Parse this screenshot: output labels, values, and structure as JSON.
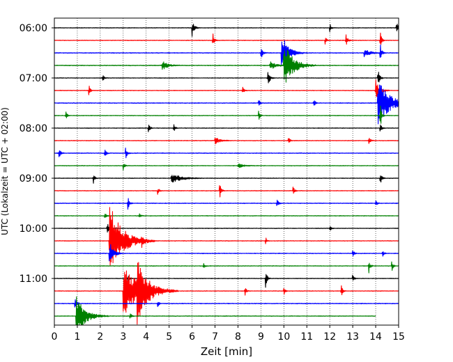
{
  "chart_data": {
    "type": "line",
    "title": "",
    "xlabel": "Zeit  [min]",
    "ylabel": "UTC (Lokalzeit = UTC + 02:00)",
    "xlim": [
      0,
      15
    ],
    "x_ticks": [
      "0",
      "1",
      "2",
      "3",
      "4",
      "5",
      "6",
      "7",
      "8",
      "9",
      "10",
      "11",
      "12",
      "13",
      "14",
      "15"
    ],
    "y_ticks": [
      "06:00",
      "07:00",
      "08:00",
      "09:00",
      "10:00",
      "11:00"
    ],
    "grid": "vertical dotted lines at each minute",
    "trace_interval_minutes": 15,
    "start_time": "06:00",
    "colors": {
      "black": "#000000",
      "red": "#ff0000",
      "blue": "#0000ff",
      "green": "#008000"
    },
    "traces": [
      {
        "start": "06:00",
        "color": "black",
        "noise": 0.5,
        "last_minute": 15,
        "events": [
          {
            "t": 6.0,
            "amp": 12,
            "dur": 0.08
          },
          {
            "t": 14.9,
            "amp": 10,
            "dur": 0.08
          },
          {
            "t": 12.0,
            "amp": 7,
            "dur": 0.05
          }
        ]
      },
      {
        "start": "06:15",
        "color": "red",
        "noise": 0.5,
        "last_minute": 15,
        "events": [
          {
            "t": 6.9,
            "amp": 12,
            "dur": 0.05
          },
          {
            "t": 12.7,
            "amp": 10,
            "dur": 0.06
          },
          {
            "t": 11.8,
            "amp": 7,
            "dur": 0.05
          },
          {
            "t": 14.2,
            "amp": 14,
            "dur": 0.05
          }
        ]
      },
      {
        "start": "06:30",
        "color": "blue",
        "noise": 0.6,
        "last_minute": 15,
        "events": [
          {
            "t": 9.9,
            "amp": 30,
            "dur": 0.25
          },
          {
            "t": 14.2,
            "amp": 14,
            "dur": 0.06
          },
          {
            "t": 9.0,
            "amp": 9,
            "dur": 0.08
          },
          {
            "t": 13.5,
            "amp": 7,
            "dur": 0.2
          }
        ]
      },
      {
        "start": "06:45",
        "color": "green",
        "noise": 0.6,
        "last_minute": 15,
        "events": [
          {
            "t": 10.0,
            "amp": 35,
            "dur": 0.35
          },
          {
            "t": 4.7,
            "amp": 8,
            "dur": 0.2
          },
          {
            "t": 9.4,
            "amp": 7,
            "dur": 0.2
          }
        ]
      },
      {
        "start": "07:00",
        "color": "black",
        "noise": 0.5,
        "last_minute": 15,
        "events": [
          {
            "t": 9.3,
            "amp": 12,
            "dur": 0.08
          },
          {
            "t": 14.1,
            "amp": 16,
            "dur": 0.06
          },
          {
            "t": 2.1,
            "amp": 6,
            "dur": 0.05
          }
        ]
      },
      {
        "start": "07:15",
        "color": "red",
        "noise": 0.5,
        "last_minute": 15,
        "events": [
          {
            "t": 1.5,
            "amp": 10,
            "dur": 0.05
          },
          {
            "t": 14.0,
            "amp": 16,
            "dur": 0.15
          },
          {
            "t": 8.2,
            "amp": 6,
            "dur": 0.05
          }
        ]
      },
      {
        "start": "07:30",
        "color": "blue",
        "noise": 0.6,
        "last_minute": 15,
        "events": [
          {
            "t": 14.1,
            "amp": 35,
            "dur": 0.45
          },
          {
            "t": 11.3,
            "amp": 8,
            "dur": 0.05
          },
          {
            "t": 8.9,
            "amp": 7,
            "dur": 0.05
          }
        ]
      },
      {
        "start": "07:45",
        "color": "green",
        "noise": 0.5,
        "last_minute": 15,
        "events": [
          {
            "t": 0.5,
            "amp": 8,
            "dur": 0.05
          },
          {
            "t": 8.9,
            "amp": 8,
            "dur": 0.05
          },
          {
            "t": 14.2,
            "amp": 20,
            "dur": 0.05
          }
        ]
      },
      {
        "start": "08:00",
        "color": "black",
        "noise": 0.5,
        "last_minute": 15,
        "events": [
          {
            "t": 4.1,
            "amp": 9,
            "dur": 0.05
          },
          {
            "t": 5.2,
            "amp": 7,
            "dur": 0.05
          },
          {
            "t": 14.2,
            "amp": 9,
            "dur": 0.05
          }
        ]
      },
      {
        "start": "08:15",
        "color": "red",
        "noise": 0.5,
        "last_minute": 15,
        "events": [
          {
            "t": 10.2,
            "amp": 8,
            "dur": 0.05
          },
          {
            "t": 13.7,
            "amp": 10,
            "dur": 0.05
          },
          {
            "t": 7.0,
            "amp": 5,
            "dur": 0.2
          }
        ]
      },
      {
        "start": "08:30",
        "color": "blue",
        "noise": 0.6,
        "last_minute": 15,
        "events": [
          {
            "t": 0.2,
            "amp": 9,
            "dur": 0.06
          },
          {
            "t": 3.1,
            "amp": 10,
            "dur": 0.06
          },
          {
            "t": 2.2,
            "amp": 7,
            "dur": 0.05
          }
        ]
      },
      {
        "start": "08:45",
        "color": "green",
        "noise": 0.5,
        "last_minute": 15,
        "events": [
          {
            "t": 3.0,
            "amp": 6,
            "dur": 0.05
          },
          {
            "t": 8.0,
            "amp": 4,
            "dur": 0.2
          }
        ]
      },
      {
        "start": "09:00",
        "color": "black",
        "noise": 0.5,
        "last_minute": 15,
        "events": [
          {
            "t": 5.1,
            "amp": 8,
            "dur": 0.35
          },
          {
            "t": 1.7,
            "amp": 8,
            "dur": 0.05
          },
          {
            "t": 14.2,
            "amp": 9,
            "dur": 0.06
          }
        ]
      },
      {
        "start": "09:15",
        "color": "red",
        "noise": 0.5,
        "last_minute": 15,
        "events": [
          {
            "t": 7.2,
            "amp": 12,
            "dur": 0.06
          },
          {
            "t": 10.4,
            "amp": 9,
            "dur": 0.05
          },
          {
            "t": 4.5,
            "amp": 6,
            "dur": 0.05
          }
        ]
      },
      {
        "start": "09:30",
        "color": "blue",
        "noise": 0.6,
        "last_minute": 15,
        "events": [
          {
            "t": 3.2,
            "amp": 10,
            "dur": 0.06
          },
          {
            "t": 9.7,
            "amp": 7,
            "dur": 0.05
          },
          {
            "t": 14.0,
            "amp": 6,
            "dur": 0.05
          }
        ]
      },
      {
        "start": "09:45",
        "color": "green",
        "noise": 0.5,
        "last_minute": 15,
        "events": [
          {
            "t": 2.2,
            "amp": 6,
            "dur": 0.05
          },
          {
            "t": 3.7,
            "amp": 6,
            "dur": 0.05
          }
        ]
      },
      {
        "start": "10:00",
        "color": "black",
        "noise": 0.5,
        "last_minute": 15,
        "events": [
          {
            "t": 2.3,
            "amp": 8,
            "dur": 0.08
          },
          {
            "t": 12.0,
            "amp": 5,
            "dur": 0.05
          }
        ]
      },
      {
        "start": "10:15",
        "color": "red",
        "noise": 0.5,
        "last_minute": 15,
        "events": [
          {
            "t": 2.4,
            "amp": 55,
            "dur": 0.5
          },
          {
            "t": 3.8,
            "amp": 9,
            "dur": 0.1
          },
          {
            "t": 9.2,
            "amp": 6,
            "dur": 0.05
          }
        ]
      },
      {
        "start": "10:30",
        "color": "blue",
        "noise": 0.6,
        "last_minute": 15,
        "events": [
          {
            "t": 2.4,
            "amp": 18,
            "dur": 0.15
          },
          {
            "t": 13.0,
            "amp": 7,
            "dur": 0.05
          },
          {
            "t": 14.3,
            "amp": 6,
            "dur": 0.05
          }
        ]
      },
      {
        "start": "10:45",
        "color": "green",
        "noise": 0.5,
        "last_minute": 15,
        "events": [
          {
            "t": 13.7,
            "amp": 12,
            "dur": 0.05
          },
          {
            "t": 14.7,
            "amp": 9,
            "dur": 0.05
          },
          {
            "t": 6.5,
            "amp": 5,
            "dur": 0.05
          }
        ]
      },
      {
        "start": "11:00",
        "color": "black",
        "noise": 0.5,
        "last_minute": 15,
        "events": [
          {
            "t": 9.2,
            "amp": 14,
            "dur": 0.06
          },
          {
            "t": 13.0,
            "amp": 9,
            "dur": 0.05
          },
          {
            "t": 3.2,
            "amp": 7,
            "dur": 0.05
          }
        ]
      },
      {
        "start": "11:15",
        "color": "red",
        "noise": 0.5,
        "last_minute": 15,
        "events": [
          {
            "t": 3.0,
            "amp": 40,
            "dur": 0.6
          },
          {
            "t": 3.6,
            "amp": 35,
            "dur": 0.4
          },
          {
            "t": 12.5,
            "amp": 10,
            "dur": 0.05
          },
          {
            "t": 8.3,
            "amp": 8,
            "dur": 0.05
          },
          {
            "t": 10.0,
            "amp": 7,
            "dur": 0.05
          }
        ]
      },
      {
        "start": "11:30",
        "color": "blue",
        "noise": 0.6,
        "last_minute": 15,
        "events": [
          {
            "t": 0.9,
            "amp": 9,
            "dur": 0.06
          },
          {
            "t": 4.5,
            "amp": 6,
            "dur": 0.05
          }
        ]
      },
      {
        "start": "11:45",
        "color": "green",
        "noise": 0.5,
        "last_minute": 14,
        "events": [
          {
            "t": 0.95,
            "amp": 30,
            "dur": 0.35
          },
          {
            "t": 3.3,
            "amp": 6,
            "dur": 0.05
          }
        ]
      }
    ]
  }
}
